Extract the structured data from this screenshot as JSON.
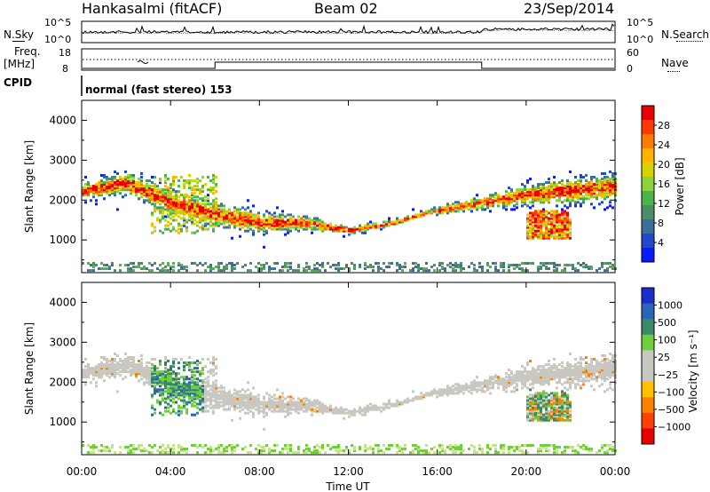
{
  "header": {
    "radar": "Hankasalmi (fitACF)",
    "beam": "Beam 02",
    "date": "23/Sep/2014"
  },
  "left_labels": {
    "nsky": "N.Sky",
    "freq": "Freq.",
    "freq_unit": "[MHz]",
    "cpid": "CPID"
  },
  "right_labels": {
    "nsearch": "N.Search",
    "nave": "Nave"
  },
  "cpid_text": "normal (fast stereo) 153",
  "chart_data": [
    {
      "type": "line",
      "name": "noise-panel",
      "left_ticks": [
        "10^5",
        "10^0"
      ],
      "right_ticks": [
        "10^5",
        "10^0"
      ]
    },
    {
      "type": "line",
      "name": "frequency-panel",
      "left_ticks": [
        "18",
        "8"
      ],
      "right_ticks": [
        "60",
        "0"
      ],
      "freq_step_hours": [
        6,
        18
      ]
    },
    {
      "type": "heatmap",
      "name": "power-panel",
      "ylabel": "Slant Range [km]",
      "yticks": [
        1000,
        2000,
        3000,
        4000
      ],
      "ylim": [
        180,
        4500
      ],
      "xlim": [
        0,
        24
      ],
      "colorbar": {
        "label": "Power [dB]",
        "ticks": [
          "4",
          "8",
          "12",
          "16",
          "20",
          "24",
          "28"
        ],
        "colors": [
          "#0a1aff",
          "#2148c8",
          "#3a6f9c",
          "#4a8f6a",
          "#4bb44a",
          "#8ed23a",
          "#d6d400",
          "#ffb400",
          "#ff7a00",
          "#ff3a00",
          "#e80000"
        ]
      },
      "band_centers_km": [
        [
          0,
          2200
        ],
        [
          2,
          2400
        ],
        [
          4,
          1900
        ],
        [
          6,
          1600
        ],
        [
          8,
          1400
        ],
        [
          10,
          1400
        ],
        [
          12,
          1200
        ],
        [
          14,
          1400
        ],
        [
          16,
          1700
        ],
        [
          18,
          1900
        ],
        [
          20,
          2100
        ],
        [
          22,
          2200
        ],
        [
          24,
          2300
        ]
      ]
    },
    {
      "type": "heatmap",
      "name": "velocity-panel",
      "ylabel": "Slant Range [km]",
      "yticks": [
        1000,
        2000,
        3000,
        4000
      ],
      "ylim": [
        180,
        4500
      ],
      "xlim": [
        0,
        24
      ],
      "colorbar": {
        "label": "Velocity [m s⁻¹]",
        "ticks": [
          "1000",
          "500",
          "100",
          "25",
          "−25",
          "−100",
          "−500",
          "−1000"
        ],
        "colors": [
          "#1a2ecc",
          "#2a66b8",
          "#3a8a6a",
          "#6fcf3a",
          "#c8c8c0",
          "#c8c8c0",
          "#ffc000",
          "#ff8000",
          "#ff4000",
          "#e80000"
        ]
      }
    }
  ],
  "x_axis": {
    "label": "Time UT",
    "ticks": [
      "00:00",
      "04:00",
      "08:00",
      "12:00",
      "16:00",
      "20:00",
      "00:00"
    ]
  }
}
